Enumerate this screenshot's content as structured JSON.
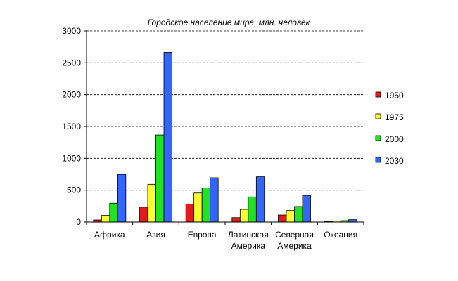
{
  "chart_data": {
    "type": "bar",
    "title": "Городское население мира, млн. человек",
    "xlabel": "",
    "ylabel": "",
    "ylim": [
      0,
      3000
    ],
    "y_ticks": [
      "0",
      "500",
      "1000",
      "1500",
      "2000",
      "2500",
      "3000"
    ],
    "grid": true,
    "legend_position": "right",
    "categories": [
      [
        "Африка"
      ],
      [
        "Азия"
      ],
      [
        "Европа"
      ],
      [
        "Латинская",
        "Америка"
      ],
      [
        "Северная",
        "Америка"
      ],
      [
        "Океания"
      ]
    ],
    "series": [
      {
        "name": "1950",
        "color": "#e31a1c",
        "values": [
          33,
          234,
          281,
          69,
          110,
          8
        ]
      },
      {
        "name": "1975",
        "color": "#ffff33",
        "values": [
          103,
          592,
          455,
          198,
          180,
          15
        ]
      },
      {
        "name": "2000",
        "color": "#21e321",
        "values": [
          295,
          1367,
          534,
          394,
          243,
          22
        ]
      },
      {
        "name": "2030",
        "color": "#3366ff",
        "values": [
          748,
          2664,
          695,
          710,
          418,
          37
        ]
      }
    ]
  }
}
